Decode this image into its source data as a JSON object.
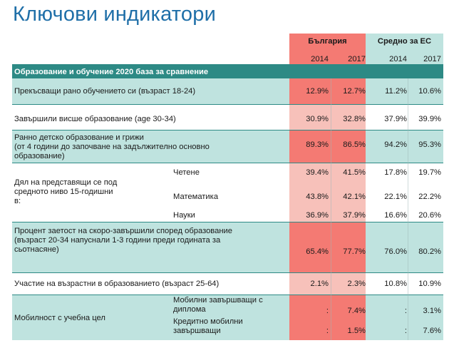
{
  "title": "Ключови индикатори",
  "header": {
    "bulgaria": "България",
    "eu_avg": "Средно за ЕС",
    "years": [
      "2014",
      "2017",
      "2014",
      "2017"
    ]
  },
  "section": {
    "label": "Образование и обучение 2020 база за сравнение"
  },
  "rows": {
    "early_leavers": {
      "label": "Прекъсващи рано обучението си (възраст 18-24)",
      "values": [
        "12.9%",
        "12.7%",
        "11.2%",
        "10.6%"
      ]
    },
    "tertiary": {
      "label": "Завършили висше образование (age 30-34)",
      "values": [
        "30.9%",
        "32.8%",
        "37.9%",
        "39.9%"
      ]
    },
    "ecec": {
      "label_lines": [
        "Ранно детско образование и грижи",
        "(от 4 години до започване на задължително основно",
        "образование)"
      ],
      "values": [
        "89.3%",
        "86.5%",
        "94.2%",
        "95.3%"
      ]
    },
    "underachievers": {
      "label_lines": [
        "Дял на представящи се под",
        "средното ниво 15-годишни",
        "в:"
      ],
      "reading": {
        "label": "Четене",
        "values": [
          "39.4%",
          "41.5%",
          "17.8%",
          "19.7%"
        ]
      },
      "maths": {
        "label": "Математика",
        "values": [
          "43.8%",
          "42.1%",
          "22.1%",
          "22.2%"
        ]
      },
      "science": {
        "label": "Науки",
        "values": [
          "36.9%",
          "37.9%",
          "16.6%",
          "20.6%"
        ]
      }
    },
    "employment": {
      "label_lines": [
        "Процент заетост на скоро-завършили според образование",
        "(възраст 20-34 напуснали 1-3 години преди годината за",
        "сьотнасяне)"
      ],
      "values": [
        "65.4%",
        "77.7%",
        "76.0%",
        "80.2%"
      ]
    },
    "adult_learning": {
      "label": "Участие на възрастни в образованието (възраст 25-64)",
      "values": [
        "2.1%",
        "2.3%",
        "10.8%",
        "10.9%"
      ]
    },
    "mobility": {
      "label": "Мобилност с учебна цел",
      "degree": {
        "label_lines": [
          "Мобилни завършващи с",
          "диплома"
        ],
        "values": [
          ":",
          "7.4%",
          ":",
          "3.1%"
        ]
      },
      "credit": {
        "label_lines": [
          "Кредитно мобилни",
          "завършващи"
        ],
        "values": [
          ":",
          "1.5%",
          ":",
          "7.6%"
        ]
      }
    }
  },
  "colors": {
    "title": "#1f6fa8",
    "teal_band": "#bfe3df",
    "bg_header_bulgaria": "#f47a73",
    "bg_header_eu": "#bfe3df",
    "section_band": "#2d8a85",
    "bg_bulgaria_strong": "#f47a73",
    "bg_bulgaria_light": "#f7c1ba"
  }
}
